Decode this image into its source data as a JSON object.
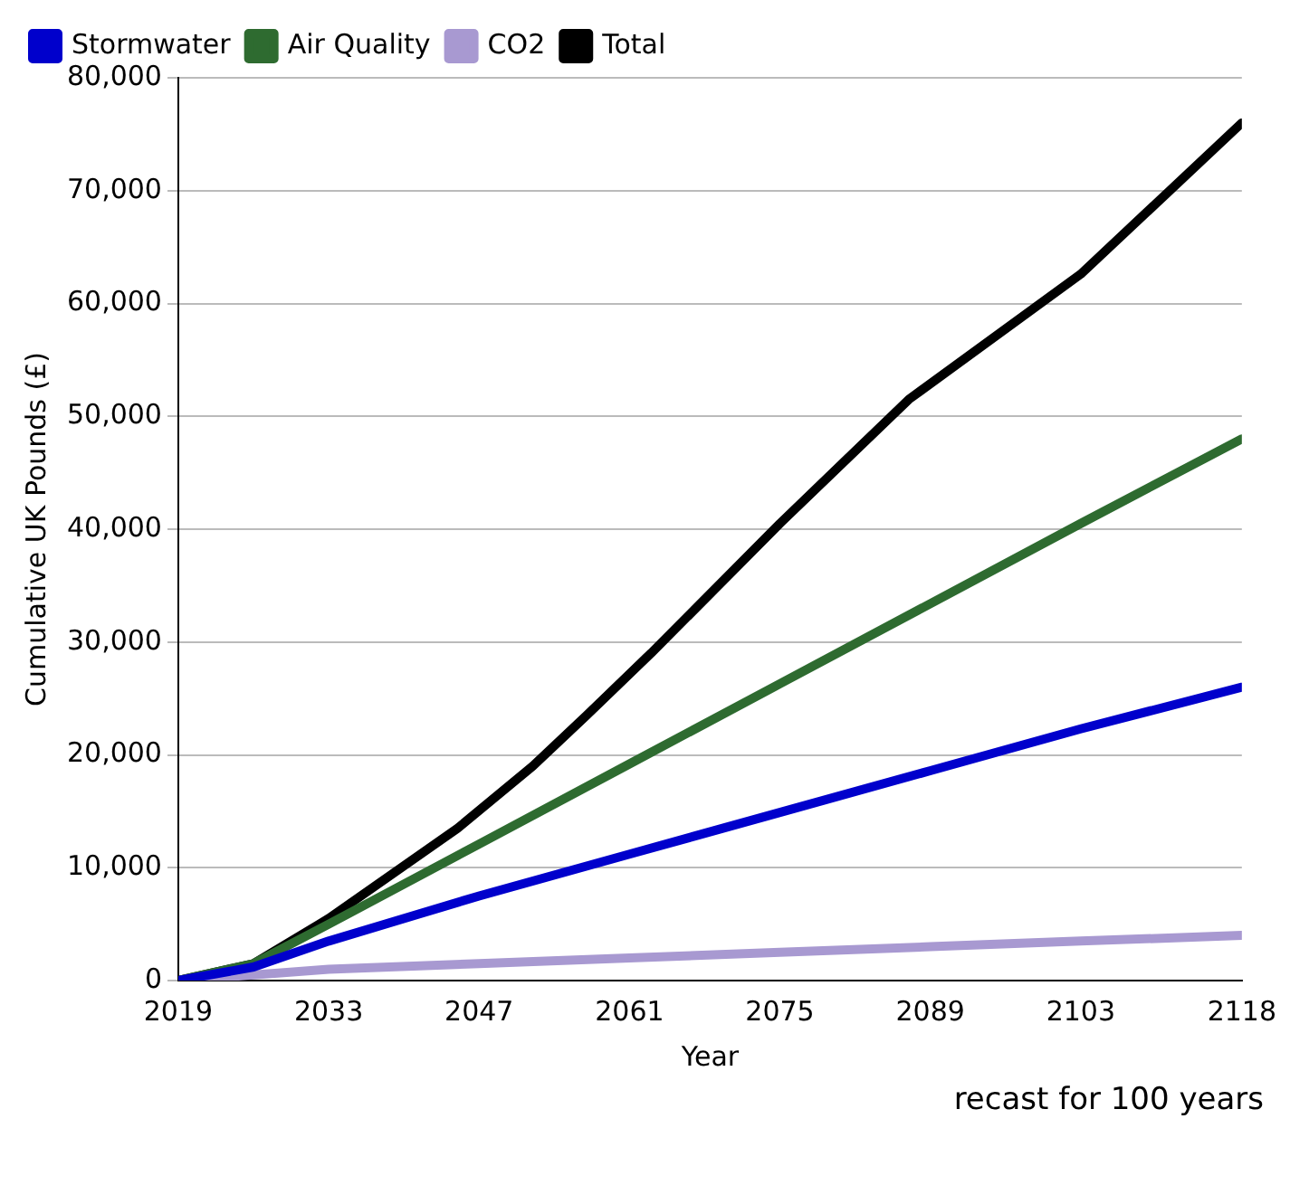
{
  "chart_data": {
    "type": "line",
    "xlabel": "Year",
    "ylabel": "Cumulative UK Pounds (£)",
    "annotations": [
      "recast for 100 years"
    ],
    "xlim": [
      2019,
      2118
    ],
    "xticks": [
      2019,
      2033,
      2047,
      2061,
      2075,
      2089,
      2103,
      2118
    ],
    "ylim": [
      0,
      80000
    ],
    "yticks": [
      0,
      {
        "value": 10000,
        "label": "10,000"
      },
      {
        "value": 20000,
        "label": "20,000"
      },
      {
        "value": 30000,
        "label": "30,000"
      },
      {
        "value": 40000,
        "label": "40,000"
      },
      {
        "value": 50000,
        "label": "50,000"
      },
      {
        "value": 60000,
        "label": "60,000"
      },
      {
        "value": 70000,
        "label": "70,000"
      },
      {
        "value": 80000,
        "label": "80,000"
      }
    ],
    "grid": "y",
    "legend": "top left",
    "marker": "none",
    "line_style": "solid",
    "series": [
      {
        "name": "Stormwater",
        "color": "#0000cc",
        "x": [
          2019,
          2026,
          2033,
          2047,
          2061,
          2075,
          2089,
          2103,
          2118
        ],
        "values": [
          0,
          1200,
          3500,
          7500,
          11200,
          14900,
          18600,
          22300,
          26000
        ]
      },
      {
        "name": "Air Quality",
        "color": "#2e6b30",
        "x": [
          2019,
          2026,
          2033,
          2047,
          2061,
          2075,
          2089,
          2103,
          2118
        ],
        "values": [
          0,
          1500,
          5000,
          12100,
          19200,
          26300,
          33400,
          40500,
          48000
        ]
      },
      {
        "name": "CO2",
        "color": "#a899d1",
        "x": [
          2019,
          2033,
          2047,
          2061,
          2075,
          2089,
          2103,
          2118
        ],
        "values": [
          0,
          1000,
          1500,
          2000,
          2500,
          3000,
          3500,
          4000
        ]
      },
      {
        "name": "Total",
        "color": "#000000",
        "x": [
          2019,
          2026,
          2033,
          2045,
          2052,
          2057,
          2063,
          2075,
          2087,
          2103,
          2118
        ],
        "values": [
          0,
          1500,
          5500,
          13500,
          19000,
          23500,
          29000,
          40500,
          51500,
          62600,
          76000
        ]
      }
    ]
  }
}
